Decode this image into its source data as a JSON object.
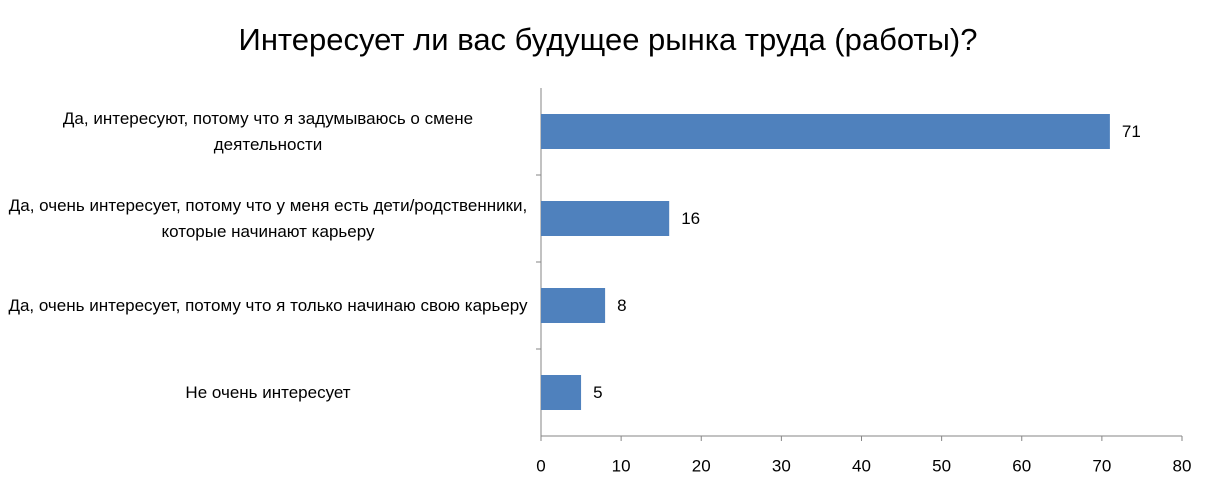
{
  "chart_data": {
    "type": "bar",
    "orientation": "horizontal",
    "title": "Интересует ли вас будущее рынка труда (работы)?",
    "categories": [
      "Да, интересуют, потому что я задумываюсь о смене деятельности",
      "Да, очень интересует, потому что у меня есть дети/родственники, которые начинают карьеру",
      "Да, очень интересует, потому что я только начинаю свою карьеру",
      "Не очень интересует"
    ],
    "values": [
      71,
      16,
      8,
      5
    ],
    "color": "#4f81bd",
    "xlim": [
      0,
      80
    ],
    "xticks": [
      0,
      10,
      20,
      30,
      40,
      50,
      60,
      70,
      80
    ],
    "grid": false
  }
}
